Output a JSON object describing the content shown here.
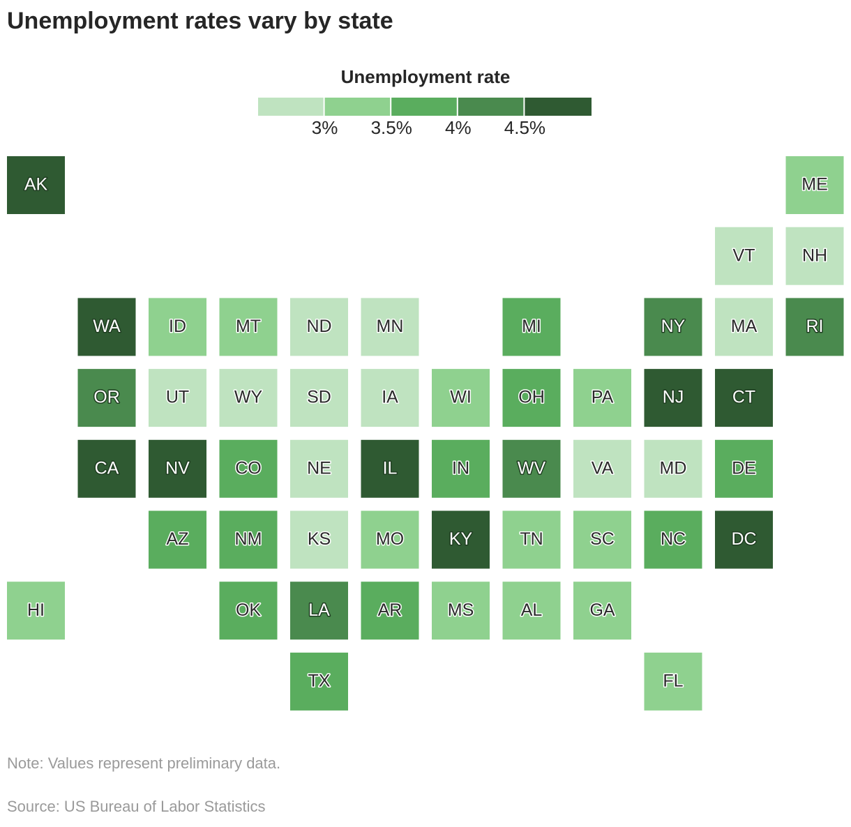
{
  "chart_data": {
    "type": "tilemap",
    "title": "Unemployment rates vary by state",
    "legend": {
      "title": "Unemployment rate",
      "colors": [
        "#bfe3c0",
        "#8fd18f",
        "#5aad5e",
        "#4a8a4e",
        "#2f5a32"
      ],
      "ticks": [
        {
          "value": 3,
          "label": "3%"
        },
        {
          "value": 3.5,
          "label": "3.5%"
        },
        {
          "value": 4,
          "label": "4%"
        },
        {
          "value": 4.5,
          "label": "4.5%"
        }
      ]
    },
    "states": [
      {
        "label": "AK",
        "bin": 4
      },
      {
        "label": "ME",
        "bin": 1
      },
      {
        "label": "VT",
        "bin": 0
      },
      {
        "label": "NH",
        "bin": 0
      },
      {
        "label": "WA",
        "bin": 4
      },
      {
        "label": "ID",
        "bin": 1
      },
      {
        "label": "MT",
        "bin": 1
      },
      {
        "label": "ND",
        "bin": 0
      },
      {
        "label": "MN",
        "bin": 0
      },
      {
        "label": "MI",
        "bin": 2
      },
      {
        "label": "NY",
        "bin": 3
      },
      {
        "label": "MA",
        "bin": 0
      },
      {
        "label": "RI",
        "bin": 3
      },
      {
        "label": "OR",
        "bin": 3
      },
      {
        "label": "UT",
        "bin": 0
      },
      {
        "label": "WY",
        "bin": 0
      },
      {
        "label": "SD",
        "bin": 0
      },
      {
        "label": "IA",
        "bin": 0
      },
      {
        "label": "WI",
        "bin": 1
      },
      {
        "label": "OH",
        "bin": 2
      },
      {
        "label": "PA",
        "bin": 1
      },
      {
        "label": "NJ",
        "bin": 4
      },
      {
        "label": "CT",
        "bin": 4
      },
      {
        "label": "CA",
        "bin": 4
      },
      {
        "label": "NV",
        "bin": 4
      },
      {
        "label": "CO",
        "bin": 2
      },
      {
        "label": "NE",
        "bin": 0
      },
      {
        "label": "IL",
        "bin": 4
      },
      {
        "label": "IN",
        "bin": 2
      },
      {
        "label": "WV",
        "bin": 3
      },
      {
        "label": "VA",
        "bin": 0
      },
      {
        "label": "MD",
        "bin": 0
      },
      {
        "label": "DE",
        "bin": 2
      },
      {
        "label": "AZ",
        "bin": 2
      },
      {
        "label": "NM",
        "bin": 2
      },
      {
        "label": "KS",
        "bin": 0
      },
      {
        "label": "MO",
        "bin": 1
      },
      {
        "label": "KY",
        "bin": 4
      },
      {
        "label": "TN",
        "bin": 1
      },
      {
        "label": "SC",
        "bin": 1
      },
      {
        "label": "NC",
        "bin": 2
      },
      {
        "label": "DC",
        "bin": 4
      },
      {
        "label": "HI",
        "bin": 1
      },
      {
        "label": "OK",
        "bin": 2
      },
      {
        "label": "LA",
        "bin": 3
      },
      {
        "label": "AR",
        "bin": 2
      },
      {
        "label": "MS",
        "bin": 1
      },
      {
        "label": "AL",
        "bin": 1
      },
      {
        "label": "GA",
        "bin": 1
      },
      {
        "label": "TX",
        "bin": 2
      },
      {
        "label": "FL",
        "bin": 1
      }
    ],
    "note": "Note: Values represent preliminary data.",
    "source": "Source: US Bureau of Labor Statistics"
  }
}
